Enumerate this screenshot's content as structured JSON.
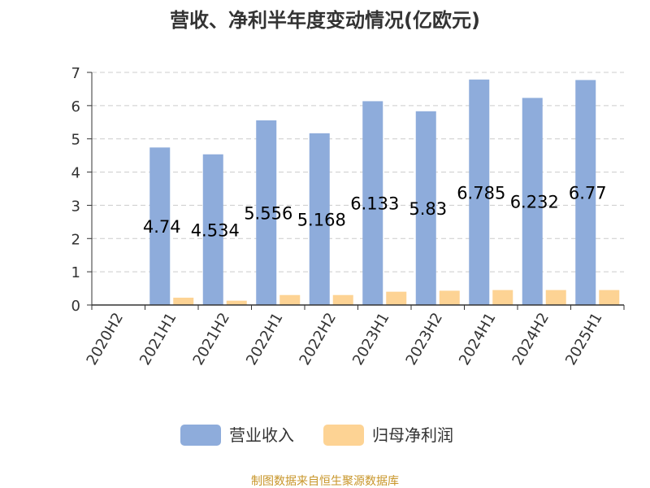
{
  "chart_data": {
    "type": "bar",
    "title": "营收、净利半年度变动情况(亿欧元)",
    "categories": [
      "2020H2",
      "2021H1",
      "2021H2",
      "2022H1",
      "2022H2",
      "2023H1",
      "2023H2",
      "2024H1",
      "2024H2",
      "2025H1"
    ],
    "series": [
      {
        "name": "营业收入",
        "color": "#8eacdb",
        "values": [
          null,
          4.74,
          4.534,
          5.556,
          5.168,
          6.133,
          5.83,
          6.785,
          6.232,
          6.77
        ],
        "labels": [
          "",
          "4.74",
          "4.534",
          "5.556",
          "5.168",
          "6.133",
          "5.83",
          "6.785",
          "6.232",
          "6.77"
        ]
      },
      {
        "name": "归母净利润",
        "color": "#fdd394",
        "values": [
          null,
          0.22,
          0.13,
          0.3,
          0.3,
          0.4,
          0.43,
          0.45,
          0.45,
          0.45
        ]
      }
    ],
    "ylim": [
      0,
      7
    ],
    "yticks": [
      "0",
      "1",
      "2",
      "3",
      "4",
      "5",
      "6",
      "7"
    ],
    "grid": true,
    "legend": "bottom-center"
  },
  "source": "制图数据来自恒生聚源数据库"
}
